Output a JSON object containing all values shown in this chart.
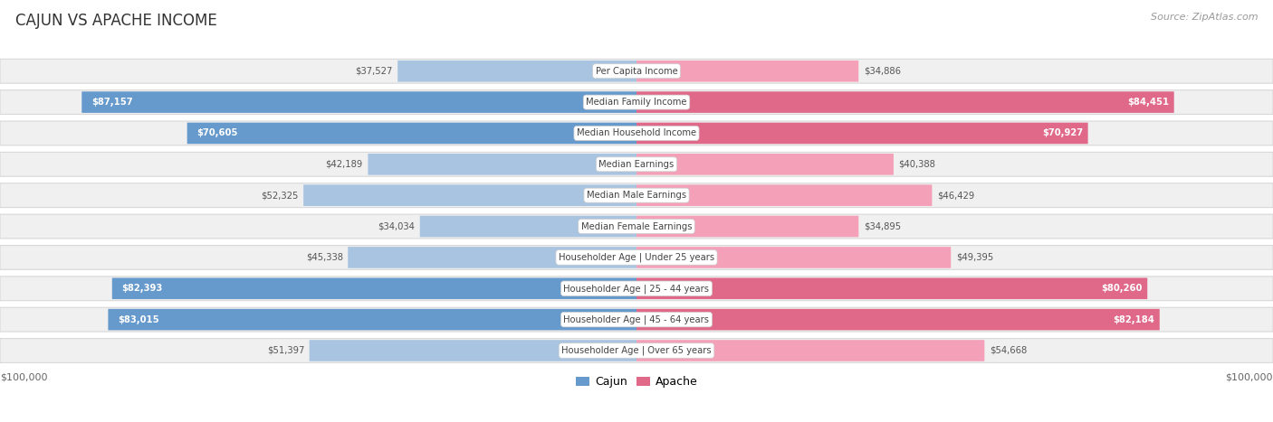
{
  "title": "CAJUN VS APACHE INCOME",
  "source": "Source: ZipAtlas.com",
  "max_val": 100000,
  "categories": [
    "Per Capita Income",
    "Median Family Income",
    "Median Household Income",
    "Median Earnings",
    "Median Male Earnings",
    "Median Female Earnings",
    "Householder Age | Under 25 years",
    "Householder Age | 25 - 44 years",
    "Householder Age | 45 - 64 years",
    "Householder Age | Over 65 years"
  ],
  "cajun_values": [
    37527,
    87157,
    70605,
    42189,
    52325,
    34034,
    45338,
    82393,
    83015,
    51397
  ],
  "apache_values": [
    34886,
    84451,
    70927,
    40388,
    46429,
    34895,
    49395,
    80260,
    82184,
    54668
  ],
  "cajun_labels": [
    "$37,527",
    "$87,157",
    "$70,605",
    "$42,189",
    "$52,325",
    "$34,034",
    "$45,338",
    "$82,393",
    "$83,015",
    "$51,397"
  ],
  "apache_labels": [
    "$34,886",
    "$84,451",
    "$70,927",
    "$40,388",
    "$46,429",
    "$34,895",
    "$49,395",
    "$80,260",
    "$82,184",
    "$54,668"
  ],
  "cajun_color_light": "#a8c4e0",
  "cajun_color_dark": "#6699cc",
  "apache_color_light": "#f4a0b8",
  "apache_color_dark": "#e0698a",
  "bg_color": "#ffffff",
  "row_bg": "#f0f0f0",
  "row_border": "#d8d8d8"
}
